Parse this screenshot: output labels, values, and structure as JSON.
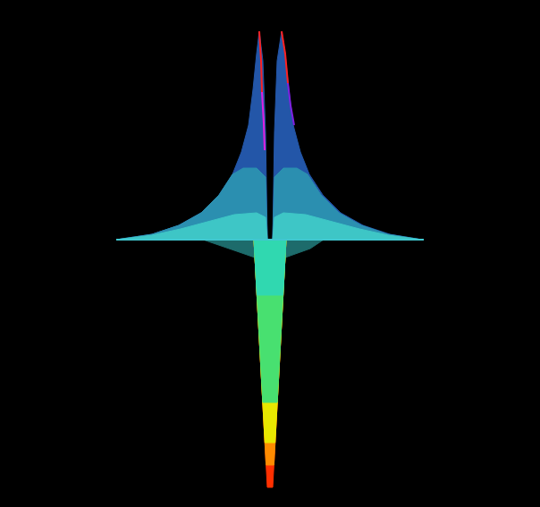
{
  "chart_data": {
    "type": "line",
    "grid": false,
    "tick_labels": false,
    "xlim": [
      -302,
      302
    ],
    "ylim": [
      -299,
      268
    ],
    "series": [
      {
        "type": "area",
        "color": "#2356a8",
        "x": [
          -172,
          -132,
          -102,
          -77,
          -57,
          -42,
          -32,
          -24,
          -19,
          -15,
          -12,
          -8,
          -5,
          -3
        ],
        "values": [
          0,
          6,
          16,
          30,
          50,
          73,
          98,
          128,
          168,
          208,
          233,
          200,
          120,
          0
        ]
      },
      {
        "type": "area",
        "color": "#2356a8",
        "x": [
          3,
          5,
          8,
          13,
          17,
          21,
          26,
          34,
          44,
          59,
          79,
          104,
          134,
          170
        ],
        "values": [
          0,
          120,
          200,
          233,
          208,
          168,
          128,
          98,
          73,
          50,
          30,
          16,
          6,
          0
        ]
      },
      {
        "type": "area",
        "color": "#2b8fb0",
        "x": [
          -172,
          -132,
          -102,
          -77,
          -57,
          -42,
          -30,
          -15,
          -5,
          -3
        ],
        "values": [
          0,
          6,
          16,
          30,
          50,
          73,
          80,
          80,
          70,
          0
        ]
      },
      {
        "type": "area",
        "color": "#2b8fb0",
        "x": [
          3,
          5,
          15,
          30,
          42,
          57,
          77,
          102,
          132,
          170
        ],
        "values": [
          0,
          70,
          80,
          80,
          73,
          50,
          30,
          16,
          6,
          0
        ]
      },
      {
        "type": "area",
        "color": "#3ec6c6",
        "x": [
          -172,
          -132,
          -100,
          -70,
          -40,
          -15,
          -5,
          -3
        ],
        "values": [
          0,
          5,
          12,
          20,
          28,
          30,
          25,
          0
        ]
      },
      {
        "type": "area",
        "color": "#3ec6c6",
        "x": [
          3,
          5,
          15,
          40,
          70,
          100,
          132,
          170
        ],
        "values": [
          0,
          25,
          30,
          28,
          20,
          12,
          5,
          0
        ]
      },
      {
        "type": "area",
        "color": "#1d6b6b",
        "x": [
          -75,
          -40,
          -17,
          17,
          45,
          60
        ],
        "values": [
          0,
          -12,
          -20,
          -20,
          -10,
          0
        ]
      },
      {
        "type": "area",
        "color": "#ff3000",
        "x": [
          -18,
          -3,
          3,
          18
        ],
        "values": [
          0,
          -277,
          -277,
          0
        ]
      },
      {
        "type": "area",
        "color": "#ff8c00",
        "x": [
          -18,
          -4.4,
          4.4,
          18
        ],
        "values": [
          0,
          -252,
          -252,
          0
        ]
      },
      {
        "type": "area",
        "color": "#e8e800",
        "x": [
          -18,
          -5.7,
          5.7,
          18
        ],
        "values": [
          0,
          -227,
          -227,
          0
        ]
      },
      {
        "type": "area",
        "color": "#48e070",
        "x": [
          -18,
          -8.1,
          8.1,
          18
        ],
        "values": [
          0,
          -182,
          -182,
          0
        ]
      },
      {
        "type": "area",
        "color": "#30d8b0",
        "x": [
          -18,
          -14.6,
          14.6,
          18
        ],
        "values": [
          0,
          -62,
          -62,
          0
        ]
      },
      {
        "type": "line",
        "color": "#40c8d0",
        "x": [
          -172,
          172
        ],
        "values": [
          0,
          0
        ]
      },
      {
        "type": "line",
        "color": "#ff2020",
        "x": [
          -12,
          -10,
          -9
        ],
        "values": [
          233,
          200,
          165
        ]
      },
      {
        "type": "line",
        "color": "#e020e0",
        "x": [
          -9,
          -7,
          -6
        ],
        "values": [
          165,
          130,
          100
        ]
      },
      {
        "type": "line",
        "color": "#ff2020",
        "x": [
          13,
          17,
          20
        ],
        "values": [
          233,
          208,
          175
        ]
      },
      {
        "type": "line",
        "color": "#8020e0",
        "x": [
          20,
          23,
          27
        ],
        "values": [
          175,
          150,
          128
        ]
      }
    ]
  }
}
